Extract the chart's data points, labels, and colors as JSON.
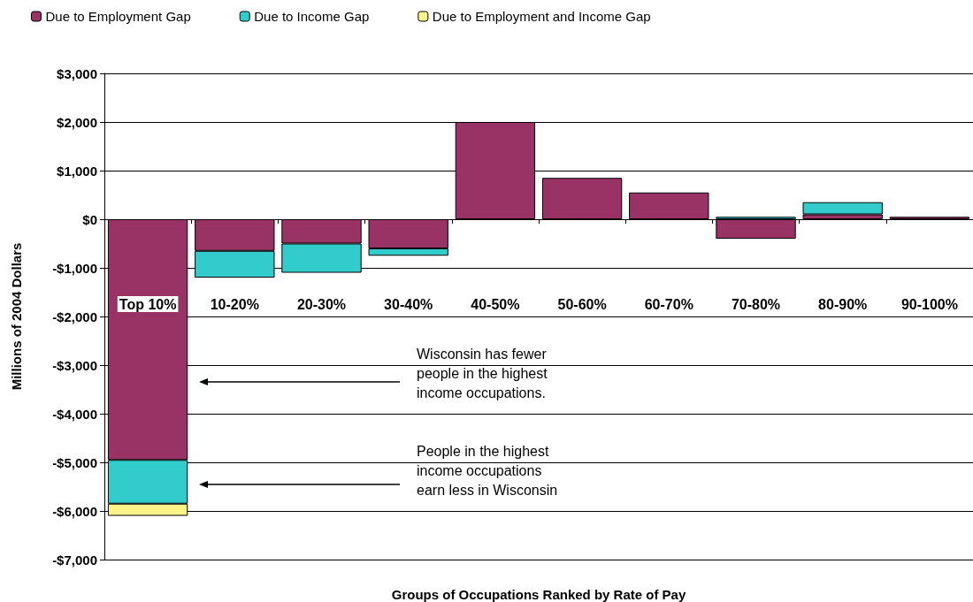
{
  "chart_data": {
    "type": "bar",
    "stacked": true,
    "xlabel": "Groups of Occupations Ranked by Rate of Pay",
    "ylabel": "Millions of 2004 Dollars",
    "categories": [
      "Top 10%",
      "10-20%",
      "20-30%",
      "30-40%",
      "40-50%",
      "50-60%",
      "60-70%",
      "70-80%",
      "80-90%",
      "90-100%"
    ],
    "series": [
      {
        "name": "Due to Employment Gap",
        "color": "#993366",
        "values": [
          -4950,
          -650,
          -500,
          -600,
          2000,
          850,
          550,
          -400,
          100,
          50
        ]
      },
      {
        "name": "Due to Income Gap",
        "color": "#33cccc",
        "values": [
          -900,
          -550,
          -600,
          -150,
          null,
          null,
          null,
          50,
          250,
          null
        ]
      },
      {
        "name": "Due to Employment and Income Gap",
        "color": "#fff38a",
        "values": [
          -250,
          null,
          null,
          null,
          null,
          null,
          null,
          null,
          null,
          null
        ]
      }
    ],
    "ylim": [
      -7000,
      3000
    ],
    "yticks": [
      {
        "value": -7000,
        "label": "-$7,000"
      },
      {
        "value": -6000,
        "label": "-$6,000"
      },
      {
        "value": -5000,
        "label": "-$5,000"
      },
      {
        "value": -4000,
        "label": "-$4,000"
      },
      {
        "value": -3000,
        "label": "-$3,000"
      },
      {
        "value": -2000,
        "label": "-$2,000"
      },
      {
        "value": -1000,
        "label": "-$1,000"
      },
      {
        "value": 0,
        "label": "$0"
      },
      {
        "value": 1000,
        "label": "$1,000"
      },
      {
        "value": 2000,
        "label": "$2,000"
      },
      {
        "value": 3000,
        "label": "$3,000"
      }
    ],
    "grid": "y",
    "legend": "top left",
    "annotations": [
      "Wisconsin has fewer people in the highest income occupations.",
      "People in the highest income occupations earn less in Wisconsin"
    ]
  }
}
